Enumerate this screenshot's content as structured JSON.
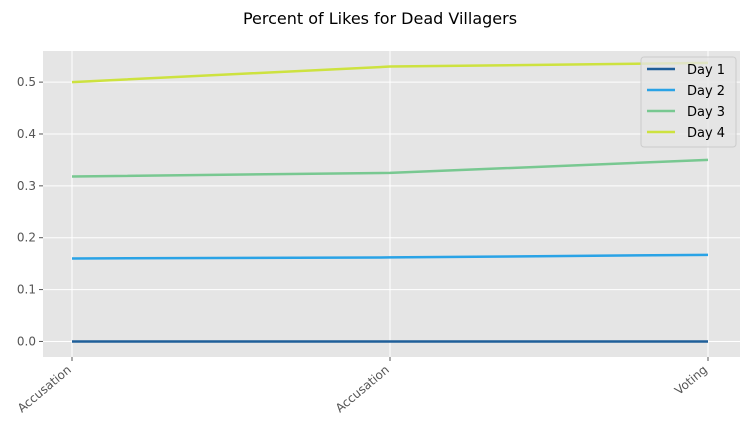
{
  "chart_data": {
    "type": "line",
    "title": "Percent of Likes for Dead Villagers",
    "xlabel": "",
    "ylabel": "",
    "categories": [
      "Accusation",
      "Accusation",
      "Voting"
    ],
    "ylim": [
      -0.03,
      0.56
    ],
    "yticks": [
      0.0,
      0.1,
      0.2,
      0.3,
      0.4,
      0.5
    ],
    "ytick_labels": [
      "0.0",
      "0.1",
      "0.2",
      "0.3",
      "0.4",
      "0.5"
    ],
    "grid": true,
    "legend_position": "top-right",
    "series": [
      {
        "name": "Day 1",
        "color": "#1f5f99",
        "values": [
          0.0,
          0.0,
          0.0
        ]
      },
      {
        "name": "Day 2",
        "color": "#2aa3e6",
        "values": [
          0.16,
          0.162,
          0.167
        ]
      },
      {
        "name": "Day 3",
        "color": "#78c891",
        "values": [
          0.318,
          0.325,
          0.35
        ]
      },
      {
        "name": "Day 4",
        "color": "#cde23f",
        "values": [
          0.5,
          0.53,
          0.537
        ]
      }
    ]
  }
}
